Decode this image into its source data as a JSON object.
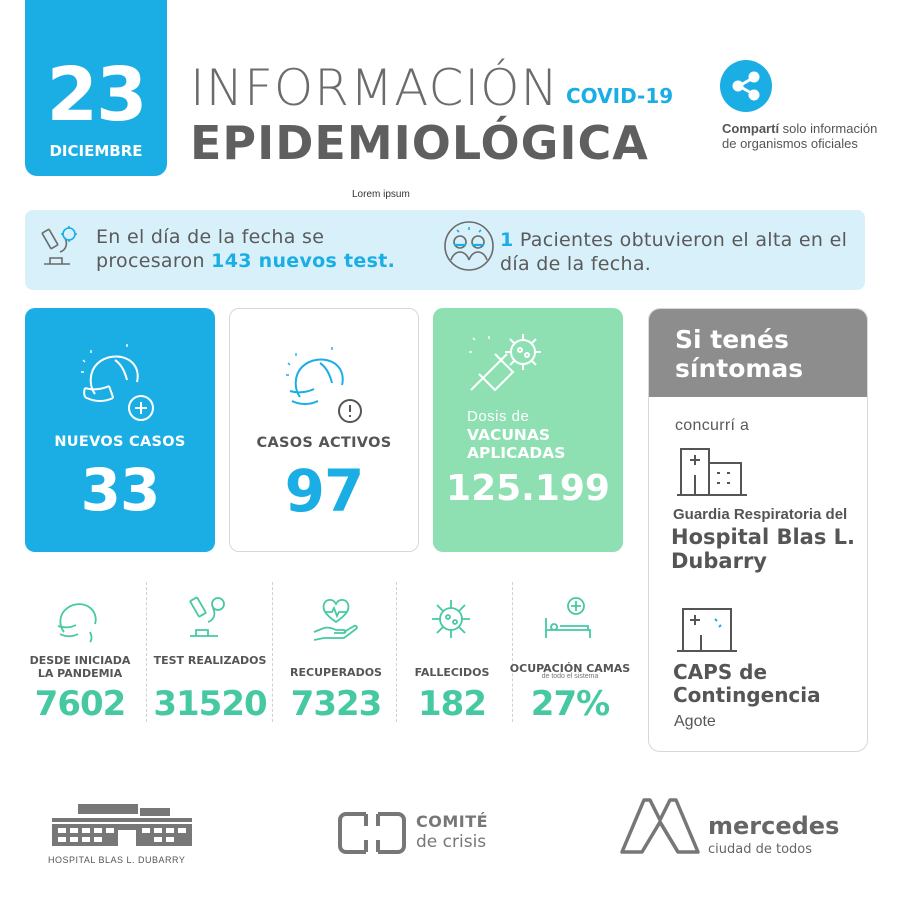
{
  "header": {
    "day": "23",
    "month": "DICIEMBRE",
    "title_line1": "INFORMACIÓN",
    "title_covid": "COVID-19",
    "title_line2": "EPIDEMIOLÓGICA",
    "subtitle": "Lorem ipsum",
    "share_bold": "Compartí",
    "share_rest": " solo información de organismos oficiales"
  },
  "info_bar": {
    "left_pre": "En el día de la fecha se procesaron ",
    "left_highlight": "143 nuevos test.",
    "right_highlight": "1",
    "right_rest": " Pacientes obtuvieron el alta en el día de la fecha."
  },
  "cards": {
    "new_cases_label": "NUEVOS CASOS",
    "new_cases_value": "33",
    "active_label": "CASOS ACTIVOS",
    "active_value": "97",
    "vaccines_pre": "Dosis de",
    "vaccines_label": "VACUNAS APLICADAS",
    "vaccines_value": "125.199"
  },
  "stats": [
    {
      "label": "DESDE INICIADA LA PANDEMIA",
      "value": "7602"
    },
    {
      "label": "TEST REALIZADOS",
      "value": "31520"
    },
    {
      "label": "RECUPERADOS",
      "value": "7323"
    },
    {
      "label": "FALLECIDOS",
      "value": "182"
    },
    {
      "label": "OCUPACIÓN CAMAS",
      "sublabel": "de todo el sistema",
      "value": "27%"
    }
  ],
  "side_panel": {
    "heading": "Si tenés síntomas",
    "concurri": "concurrí a",
    "guardia": "Guardia Respiratoria del",
    "hospital": "Hospital Blas L. Dubarry",
    "caps": "CAPS de Contingencia",
    "agote": "Agote"
  },
  "footer": {
    "hospital": "HOSPITAL BLAS L. DUBARRY",
    "comite_line1": "COMITÉ",
    "comite_line2": "de crisis",
    "mercedes_line1": "mercedes",
    "mercedes_line2": "ciudad de todos"
  },
  "colors": {
    "accent_blue": "#1aaee5",
    "accent_green": "#46c9a2",
    "vaccine_card": "#8ee0b3",
    "side_header": "#8d8d8d"
  }
}
